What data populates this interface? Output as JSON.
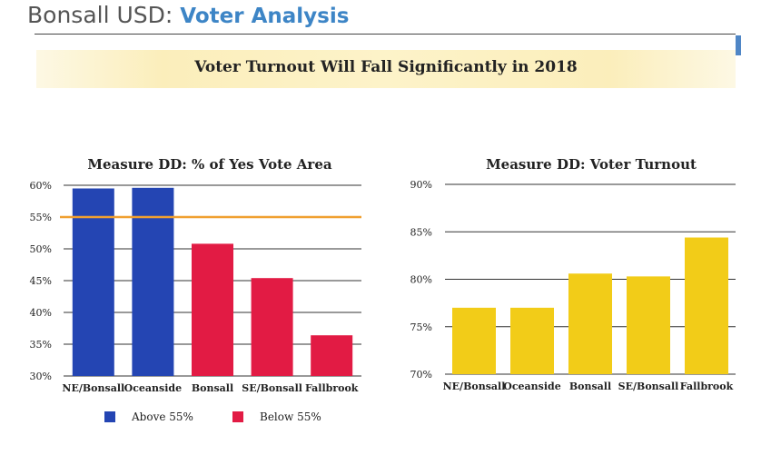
{
  "header": {
    "org": "Bonsall USD:",
    "section": "Voter Analysis"
  },
  "banner": {
    "title": "Voter Turnout Will Fall Significantly in 2018"
  },
  "colors": {
    "blue": "#2445b3",
    "red": "#e21b44",
    "yellow": "#f2cc18",
    "orange": "#f0a030",
    "accent": "#3d85c6"
  },
  "chart_data": [
    {
      "type": "bar",
      "title": "Measure DD: % of Yes Vote Area",
      "categories": [
        "NE/Bonsall",
        "Oceanside",
        "Bonsall",
        "SE/Bonsall",
        "Fallbrook"
      ],
      "values": [
        59.5,
        59.6,
        50.8,
        45.4,
        36.4
      ],
      "ylim": [
        30,
        60
      ],
      "yticks": [
        "30%",
        "35%",
        "40%",
        "45%",
        "50%",
        "55%",
        "60%"
      ],
      "reference_line": 55,
      "bar_groups": [
        "Above 55%",
        "Above 55%",
        "Below 55%",
        "Below 55%",
        "Below 55%"
      ],
      "legend": [
        {
          "label": "Above 55%",
          "color": "#2445b3"
        },
        {
          "label": "Below 55%",
          "color": "#e21b44"
        }
      ],
      "xlabel": "",
      "ylabel": ""
    },
    {
      "type": "bar",
      "title": "Measure DD: Voter Turnout",
      "categories": [
        "NE/Bonsall",
        "Oceanside",
        "Bonsall",
        "SE/Bonsall",
        "Fallbrook"
      ],
      "values": [
        77.0,
        77.0,
        80.6,
        80.3,
        84.4
      ],
      "ylim": [
        70,
        90
      ],
      "yticks": [
        "70%",
        "75%",
        "80%",
        "85%",
        "90%"
      ],
      "xlabel": "",
      "ylabel": ""
    }
  ]
}
